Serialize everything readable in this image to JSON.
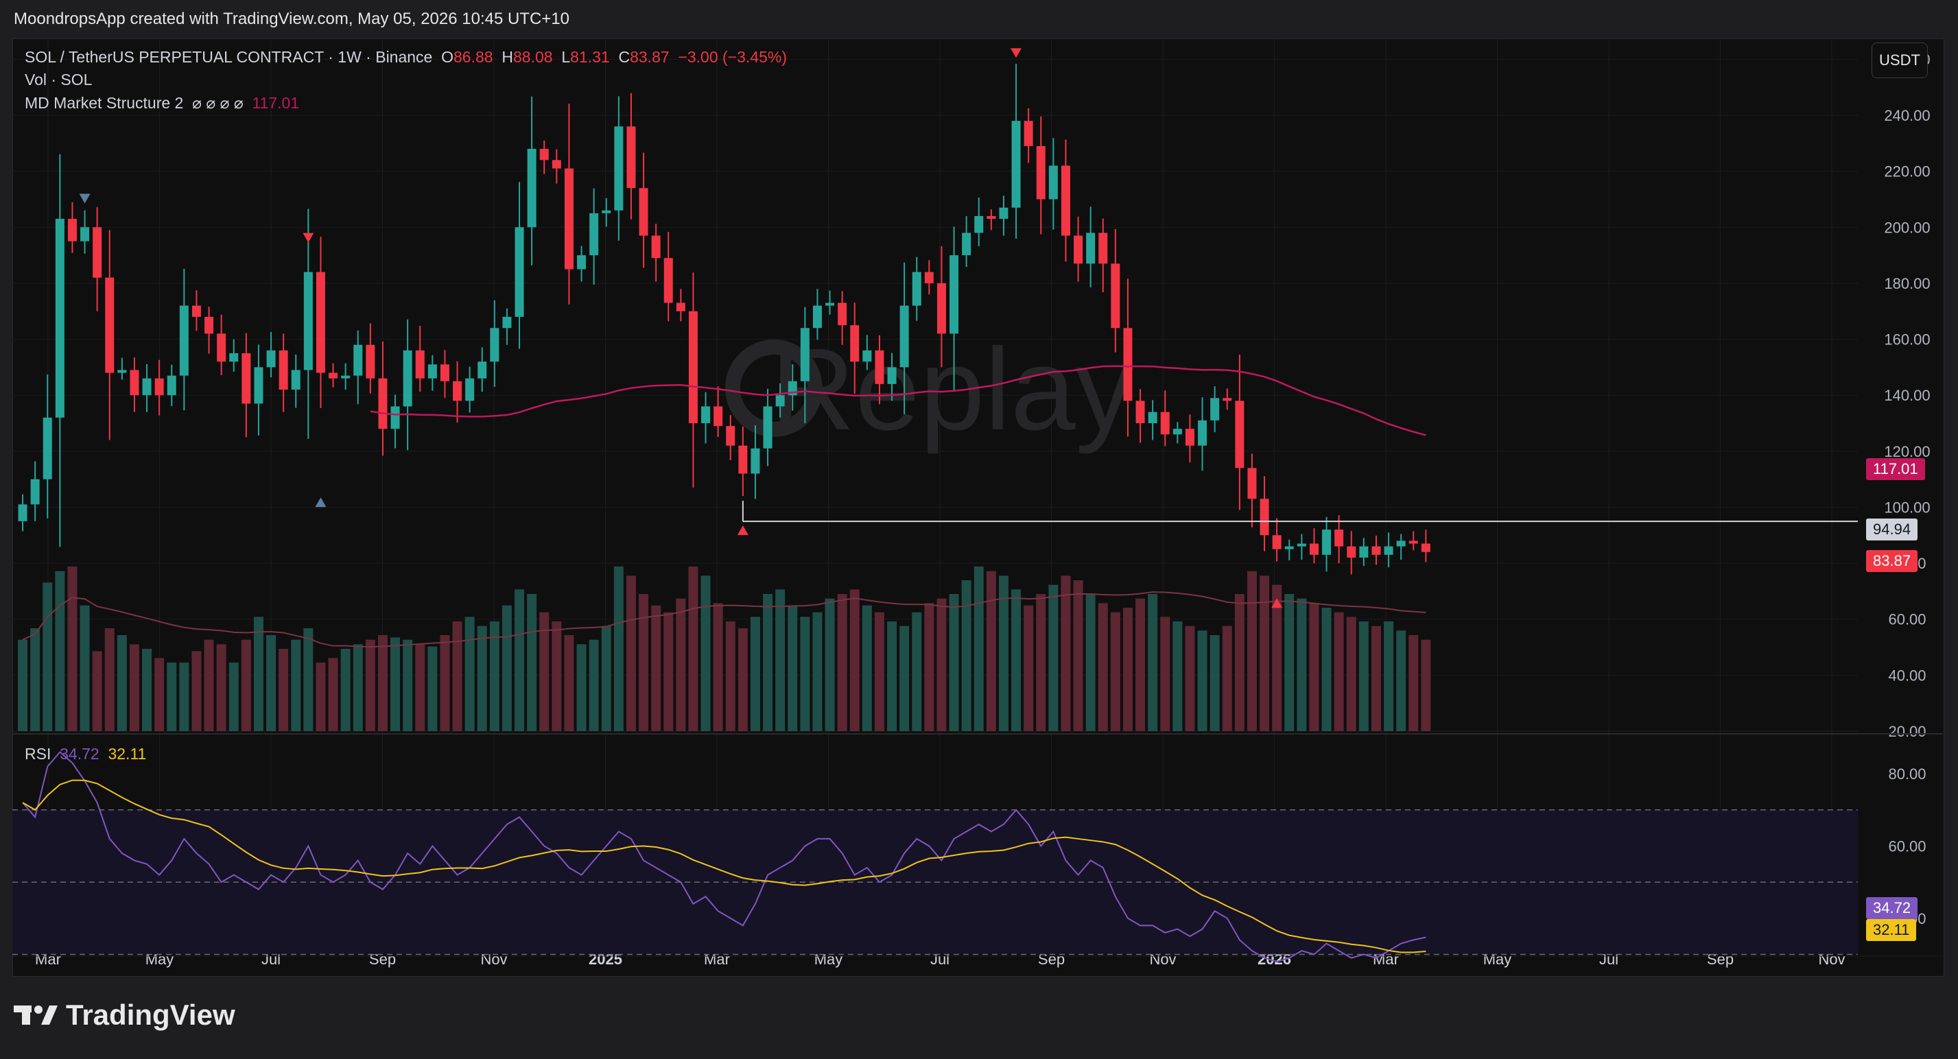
{
  "attribution": "MoondropsApp created with TradingView.com, May 05, 2026 10:45 UTC+10",
  "header": {
    "symbol": "SOL / TetherUS PERPETUAL CONTRACT · 1W · Binance",
    "o_label": "O",
    "o_val": "86.88",
    "h_label": "H",
    "h_val": "88.08",
    "l_label": "L",
    "l_val": "81.31",
    "c_label": "C",
    "c_val": "83.87",
    "change": "−3.00 (−3.45%)",
    "vol_label": "Vol · SOL",
    "indicator_label": "MD Market Structure 2",
    "indicator_params": "⌀ ⌀ ⌀ ⌀",
    "indicator_value": "117.01",
    "rsi_label": "RSI",
    "rsi_value": "34.72",
    "rsi_ma_value": "32.11"
  },
  "currency_button": "USDT",
  "price_tags": {
    "ma": "117.01",
    "level": "94.94",
    "last": "83.87",
    "rsi": "34.72",
    "rsi_ma": "32.11"
  },
  "watermark": "Replay",
  "price_axis": [
    "260.00",
    "240.00",
    "220.00",
    "200.00",
    "180.00",
    "160.00",
    "140.00",
    "120.00",
    "100.00",
    "80.00",
    "60.00",
    "40.00",
    "20.00"
  ],
  "rsi_axis": [
    "80.00",
    "60.00",
    "40.00"
  ],
  "time_axis": [
    {
      "label": "Mar",
      "bold": false
    },
    {
      "label": "May",
      "bold": false
    },
    {
      "label": "Jul",
      "bold": false
    },
    {
      "label": "Sep",
      "bold": false
    },
    {
      "label": "Nov",
      "bold": false
    },
    {
      "label": "2025",
      "bold": true
    },
    {
      "label": "Mar",
      "bold": false
    },
    {
      "label": "May",
      "bold": false
    },
    {
      "label": "Jul",
      "bold": false
    },
    {
      "label": "Sep",
      "bold": false
    },
    {
      "label": "Nov",
      "bold": false
    },
    {
      "label": "2026",
      "bold": true
    },
    {
      "label": "Mar",
      "bold": false
    },
    {
      "label": "May",
      "bold": false
    },
    {
      "label": "Jul",
      "bold": false
    },
    {
      "label": "Sep",
      "bold": false
    },
    {
      "label": "Nov",
      "bold": false
    }
  ],
  "brand": "TradingView",
  "colors": {
    "up": "#26a69a",
    "down": "#f23645",
    "ma": "#c2185b",
    "rsi": "#7e57c2",
    "rsi_ma": "#f0c419",
    "bg": "#0f0f0f"
  },
  "chart_data": {
    "type": "candlestick",
    "interval": "1W",
    "y_range": [
      20,
      265
    ],
    "rsi_range": [
      28,
      88
    ],
    "rsi_bands": [
      70,
      50,
      30
    ],
    "level": 94.94,
    "closes": [
      101,
      110,
      132,
      203,
      195,
      200,
      182,
      148,
      149,
      140,
      146,
      140,
      147,
      172,
      168,
      162,
      152,
      155,
      137,
      150,
      156,
      142,
      149,
      184,
      148,
      146,
      147,
      158,
      146,
      128,
      136,
      156,
      146,
      151,
      145,
      138,
      146,
      152,
      164,
      168,
      200,
      228,
      224,
      221,
      185,
      190,
      205,
      206,
      236,
      214,
      197,
      189,
      173,
      170,
      130,
      136,
      129,
      122,
      112,
      121,
      136,
      140,
      145,
      164,
      172,
      173,
      165,
      152,
      156,
      144,
      150,
      172,
      184,
      180,
      162,
      190,
      198,
      204,
      203,
      207,
      238,
      229,
      210,
      222,
      197,
      187,
      198,
      187,
      164,
      138,
      130,
      134,
      126,
      128,
      122,
      131,
      139,
      138,
      114,
      103,
      90,
      85,
      86,
      87,
      83,
      92,
      86,
      82,
      86,
      83,
      86,
      88,
      87,
      84
    ],
    "volume": [
      40,
      45,
      65,
      70,
      72,
      55,
      35,
      45,
      42,
      38,
      36,
      32,
      30,
      30,
      35,
      40,
      38,
      30,
      40,
      50,
      42,
      36,
      40,
      45,
      30,
      32,
      36,
      38,
      40,
      42,
      41,
      40,
      38,
      37,
      42,
      48,
      50,
      46,
      48,
      55,
      62,
      60,
      52,
      48,
      42,
      38,
      40,
      46,
      72,
      68,
      60,
      55,
      52,
      58,
      72,
      68,
      56,
      48,
      45,
      50,
      60,
      62,
      55,
      50,
      52,
      58,
      60,
      62,
      55,
      52,
      48,
      46,
      52,
      56,
      58,
      60,
      66,
      72,
      70,
      68,
      62,
      55,
      60,
      64,
      68,
      66,
      60,
      56,
      52,
      54,
      58,
      60,
      50,
      48,
      46,
      44,
      42,
      46,
      60,
      70,
      68,
      64,
      60,
      58,
      56,
      54,
      52,
      50,
      48,
      46,
      48,
      44,
      42,
      40
    ],
    "rsi": [
      72,
      68,
      82,
      86,
      83,
      78,
      72,
      62,
      58,
      56,
      55,
      52,
      56,
      62,
      58,
      55,
      50,
      52,
      50,
      48,
      52,
      50,
      54,
      60,
      52,
      50,
      52,
      56,
      50,
      48,
      52,
      58,
      55,
      60,
      56,
      52,
      54,
      58,
      62,
      66,
      68,
      64,
      60,
      58,
      54,
      52,
      56,
      60,
      64,
      62,
      56,
      54,
      52,
      50,
      44,
      46,
      42,
      40,
      38,
      44,
      52,
      54,
      56,
      60,
      62,
      62,
      58,
      52,
      54,
      50,
      52,
      58,
      62,
      60,
      56,
      62,
      64,
      66,
      64,
      66,
      70,
      66,
      60,
      64,
      56,
      52,
      56,
      54,
      46,
      40,
      38,
      38,
      36,
      37,
      35,
      37,
      42,
      40,
      34,
      31,
      29,
      28,
      29,
      31,
      30,
      33,
      31,
      29,
      30,
      29,
      31,
      33,
      34,
      34.72
    ],
    "markers_down": [
      {
        "i": 5,
        "price": 210
      },
      {
        "i": 23,
        "price": 196
      },
      {
        "i": 80,
        "price": 262
      }
    ],
    "markers_up": [
      {
        "i": 24,
        "price": 102
      },
      {
        "i": 58,
        "price": 92
      },
      {
        "i": 101,
        "price": 66
      }
    ]
  }
}
